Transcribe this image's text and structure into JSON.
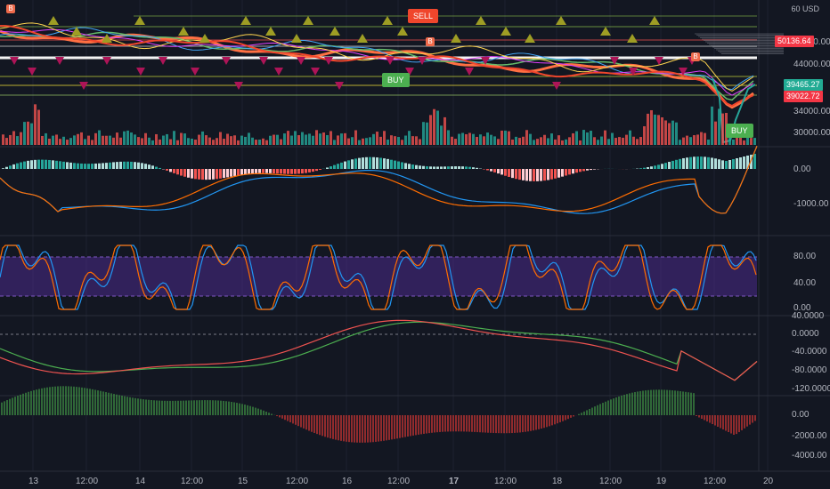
{
  "currency_label": "USD",
  "currency_prefix": "60",
  "price_axis": [
    "52000.00",
    "44000.00",
    "34000.00",
    "30000.00"
  ],
  "price_tags": {
    "red_top": "50136.64",
    "green": "39465.27",
    "red_bottom": "39022.72"
  },
  "macd_axis": [
    "0.00",
    "-1000.00"
  ],
  "stoch_axis": [
    "80.00",
    "40.00",
    "0.00"
  ],
  "osc_axis": [
    "40.0000",
    "0.0000",
    "-40.0000",
    "-80.0000",
    "-120.0000"
  ],
  "hist_axis": [
    "0.00",
    "-2000.00",
    "-4000.00"
  ],
  "time_axis": [
    "13",
    "12:00",
    "14",
    "12:00",
    "15",
    "12:00",
    "16",
    "12:00",
    "17",
    "12:00",
    "18",
    "12:00",
    "19",
    "12:00",
    "20"
  ],
  "signals": {
    "sell": "SELL",
    "buy_1": "BUY",
    "buy_2": "BUY",
    "b_mark": "B"
  },
  "colors": {
    "background": "#131722",
    "up": "#26a69a",
    "down": "#ef5350",
    "band": "#4a2a8a",
    "buy": "#4caf50",
    "sell": "#f0462c"
  }
}
